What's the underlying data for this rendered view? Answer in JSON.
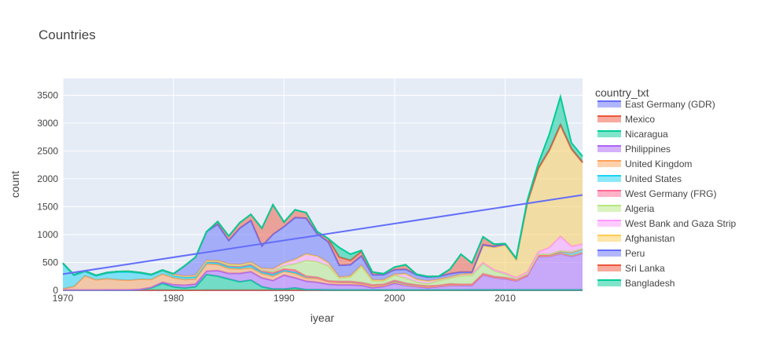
{
  "chart_data": {
    "type": "area",
    "title": "Countries",
    "xlabel": "iyear",
    "ylabel": "count",
    "xlim": [
      1970,
      2017
    ],
    "ylim": [
      0,
      3800
    ],
    "x_ticks": [
      1970,
      1980,
      1990,
      2000,
      2010
    ],
    "y_ticks": [
      0,
      500,
      1000,
      1500,
      2000,
      2500,
      3000,
      3500
    ],
    "grid": true,
    "legend": {
      "title": "country_txt",
      "placement": "right"
    },
    "x": [
      1970,
      1971,
      1972,
      1973,
      1974,
      1975,
      1976,
      1977,
      1978,
      1979,
      1980,
      1981,
      1982,
      1983,
      1984,
      1985,
      1986,
      1987,
      1988,
      1989,
      1990,
      1991,
      1992,
      1993,
      1994,
      1995,
      1996,
      1997,
      1998,
      1999,
      2000,
      2001,
      2002,
      2003,
      2004,
      2005,
      2006,
      2007,
      2008,
      2009,
      2010,
      2011,
      2012,
      2013,
      2014,
      2015,
      2016,
      2017
    ],
    "series": [
      {
        "name": "East Germany (GDR)",
        "color": "#636efa",
        "values": [
          0,
          0,
          0,
          0,
          0,
          0,
          0,
          0,
          0,
          0,
          0,
          0,
          0,
          0,
          0,
          0,
          0,
          0,
          0,
          0,
          0,
          0,
          0,
          0,
          0,
          0,
          0,
          0,
          0,
          0,
          0,
          0,
          0,
          0,
          0,
          0,
          0,
          0,
          0,
          0,
          0,
          0,
          0,
          0,
          0,
          0,
          0,
          0
        ]
      },
      {
        "name": "Mexico",
        "color": "#ef553b",
        "values": [
          2,
          2,
          2,
          2,
          3,
          3,
          4,
          3,
          3,
          3,
          2,
          2,
          2,
          3,
          3,
          3,
          3,
          3,
          3,
          4,
          3,
          4,
          3,
          3,
          3,
          2,
          2,
          2,
          2,
          2,
          2,
          2,
          2,
          2,
          2,
          2,
          2,
          3,
          3,
          3,
          3,
          3,
          3,
          3,
          3,
          4,
          4,
          4
        ]
      },
      {
        "name": "Nicaragua",
        "color": "#00cc96",
        "values": [
          0,
          0,
          0,
          0,
          0,
          0,
          0,
          10,
          40,
          120,
          60,
          40,
          60,
          280,
          250,
          200,
          150,
          180,
          60,
          20,
          20,
          40,
          10,
          10,
          5,
          5,
          5,
          5,
          5,
          5,
          5,
          5,
          5,
          5,
          5,
          5,
          5,
          5,
          5,
          5,
          5,
          5,
          5,
          5,
          5,
          5,
          5,
          5
        ]
      },
      {
        "name": "Philippines",
        "color": "#ab63fa",
        "values": [
          5,
          5,
          5,
          5,
          5,
          5,
          5,
          5,
          10,
          20,
          40,
          50,
          50,
          60,
          100,
          100,
          150,
          150,
          160,
          150,
          250,
          180,
          150,
          130,
          100,
          90,
          90,
          80,
          40,
          60,
          120,
          80,
          60,
          40,
          60,
          80,
          80,
          80,
          270,
          220,
          200,
          160,
          250,
          600,
          600,
          650,
          600,
          660
        ]
      },
      {
        "name": "United Kingdom",
        "color": "#ffa15a",
        "values": [
          20,
          60,
          250,
          180,
          200,
          180,
          170,
          180,
          140,
          150,
          120,
          100,
          90,
          130,
          110,
          90,
          80,
          70,
          80,
          80,
          70,
          80,
          60,
          70,
          50,
          40,
          40,
          30,
          30,
          20,
          20,
          10,
          10,
          10,
          10,
          10,
          10,
          10,
          10,
          10,
          10,
          10,
          10,
          10,
          10,
          10,
          10,
          10
        ]
      },
      {
        "name": "United States",
        "color": "#19d3f3",
        "values": [
          450,
          200,
          80,
          70,
          100,
          140,
          150,
          110,
          80,
          60,
          40,
          40,
          40,
          30,
          30,
          30,
          30,
          40,
          20,
          30,
          10,
          20,
          30,
          20,
          10,
          20,
          20,
          20,
          20,
          20,
          30,
          30,
          20,
          20,
          10,
          20,
          10,
          10,
          10,
          10,
          10,
          10,
          10,
          10,
          20,
          30,
          60,
          60
        ]
      },
      {
        "name": "West Germany (FRG)",
        "color": "#ff6692",
        "values": [
          10,
          10,
          10,
          10,
          10,
          10,
          10,
          10,
          10,
          10,
          20,
          20,
          20,
          20,
          20,
          20,
          20,
          30,
          30,
          30,
          30,
          40,
          0,
          0,
          0,
          0,
          0,
          0,
          0,
          0,
          0,
          0,
          0,
          0,
          0,
          0,
          0,
          0,
          0,
          0,
          0,
          0,
          0,
          0,
          0,
          0,
          0,
          0
        ]
      },
      {
        "name": "Algeria",
        "color": "#b6e880",
        "values": [
          0,
          0,
          0,
          0,
          0,
          0,
          0,
          0,
          0,
          0,
          0,
          0,
          0,
          0,
          10,
          10,
          10,
          10,
          10,
          30,
          50,
          110,
          280,
          280,
          270,
          60,
          80,
          290,
          70,
          60,
          90,
          90,
          50,
          40,
          80,
          100,
          150,
          160,
          180,
          100,
          60,
          20,
          20,
          20,
          10,
          10,
          10,
          10
        ]
      },
      {
        "name": "West Bank and Gaza Strip",
        "color": "#ff97ff",
        "values": [
          0,
          0,
          0,
          0,
          0,
          0,
          0,
          0,
          0,
          0,
          5,
          5,
          5,
          10,
          10,
          20,
          20,
          20,
          30,
          40,
          60,
          80,
          120,
          100,
          60,
          20,
          20,
          20,
          20,
          20,
          20,
          80,
          50,
          50,
          30,
          20,
          30,
          30,
          20,
          20,
          20,
          20,
          30,
          40,
          120,
          260,
          100,
          80
        ]
      },
      {
        "name": "Afghanistan",
        "color": "#fecb52",
        "values": [
          0,
          0,
          0,
          0,
          0,
          0,
          0,
          0,
          0,
          0,
          0,
          0,
          0,
          0,
          0,
          0,
          0,
          0,
          0,
          0,
          0,
          0,
          0,
          0,
          0,
          0,
          0,
          0,
          0,
          0,
          0,
          0,
          0,
          0,
          0,
          0,
          0,
          0,
          300,
          400,
          500,
          320,
          1230,
          1480,
          1730,
          1980,
          1730,
          1450
        ]
      },
      {
        "name": "Peru",
        "color": "#636efa",
        "values": [
          0,
          0,
          0,
          0,
          0,
          0,
          0,
          0,
          0,
          0,
          10,
          180,
          330,
          520,
          650,
          420,
          650,
          750,
          400,
          620,
          650,
          750,
          640,
          400,
          370,
          210,
          200,
          170,
          90,
          90,
          80,
          80,
          80,
          70,
          50,
          60,
          40,
          30,
          20,
          20,
          20,
          20,
          20,
          20,
          20,
          20,
          20,
          20
        ]
      },
      {
        "name": "Sri Lanka",
        "color": "#ef553b",
        "values": [
          0,
          0,
          0,
          0,
          0,
          0,
          0,
          0,
          0,
          0,
          0,
          0,
          0,
          0,
          50,
          80,
          100,
          110,
          320,
          530,
          80,
          140,
          100,
          40,
          60,
          150,
          80,
          80,
          50,
          20,
          50,
          80,
          10,
          10,
          5,
          80,
          320,
          160,
          140,
          40,
          10,
          5,
          5,
          5,
          5,
          5,
          5,
          5
        ]
      },
      {
        "name": "Bangladesh",
        "color": "#00cc96",
        "values": [
          0,
          0,
          0,
          0,
          0,
          0,
          0,
          0,
          0,
          0,
          0,
          0,
          0,
          0,
          0,
          0,
          0,
          0,
          0,
          0,
          0,
          0,
          0,
          0,
          0,
          170,
          110,
          20,
          0,
          0,
          0,
          0,
          0,
          0,
          0,
          0,
          0,
          0,
          0,
          0,
          0,
          0,
          30,
          80,
          280,
          500,
          100,
          100
        ]
      }
    ],
    "trendline": {
      "color": "#636efa",
      "x": [
        1970,
        2017
      ],
      "y": [
        290,
        1710
      ]
    }
  }
}
